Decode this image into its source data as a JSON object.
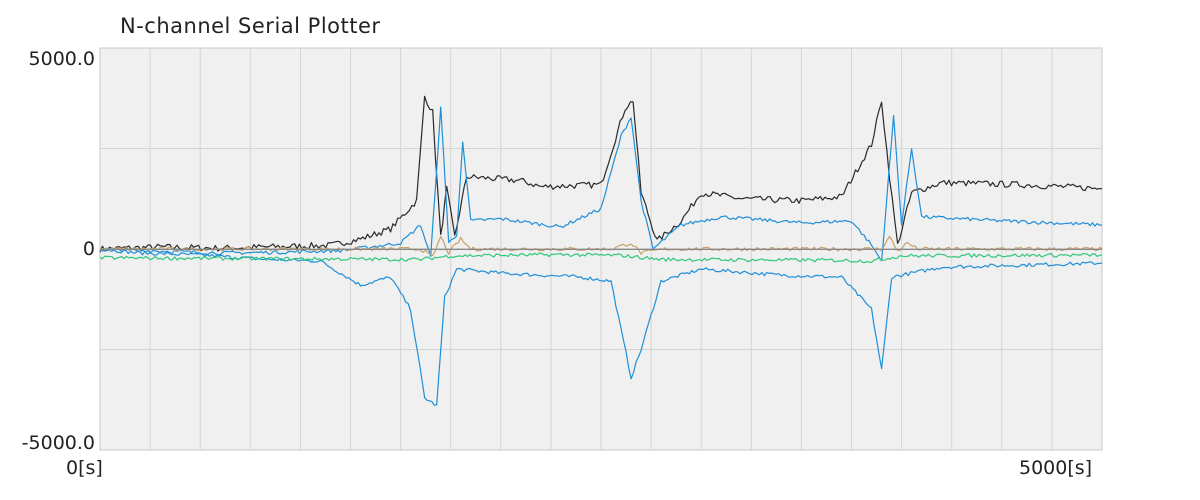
{
  "window": {
    "title": "N-channel Serial Plotter"
  },
  "chart_data": {
    "type": "line",
    "title": "N-channel Serial Plotter",
    "xlabel": "",
    "ylabel": "",
    "xlim": [
      0,
      5000
    ],
    "ylim": [
      -5000,
      5000
    ],
    "x_tick_labels": {
      "min": "0[s]",
      "max": "5000[s]"
    },
    "y_tick_labels": {
      "max": "5000.0",
      "zero": "0",
      "min": "-5000.0"
    },
    "grid": true,
    "legend": "none",
    "x_grid_step": 250,
    "y_grid_step": 2500,
    "series": [
      {
        "color": "#2a2a2a",
        "points": [
          [
            0,
            0
          ],
          [
            300,
            50
          ],
          [
            600,
            20
          ],
          [
            900,
            60
          ],
          [
            1150,
            90
          ],
          [
            1300,
            250
          ],
          [
            1450,
            500
          ],
          [
            1580,
            1200
          ],
          [
            1620,
            3800
          ],
          [
            1660,
            3400
          ],
          [
            1700,
            300
          ],
          [
            1730,
            1500
          ],
          [
            1770,
            300
          ],
          [
            1830,
            1800
          ],
          [
            2100,
            1700
          ],
          [
            2200,
            1550
          ],
          [
            2500,
            1600
          ],
          [
            2620,
            3500
          ],
          [
            2660,
            3700
          ],
          [
            2700,
            1400
          ],
          [
            2780,
            200
          ],
          [
            2900,
            700
          ],
          [
            3000,
            1400
          ],
          [
            3200,
            1250
          ],
          [
            3500,
            1200
          ],
          [
            3700,
            1300
          ],
          [
            3850,
            2600
          ],
          [
            3900,
            3700
          ],
          [
            3940,
            1800
          ],
          [
            3980,
            100
          ],
          [
            4050,
            1400
          ],
          [
            4200,
            1650
          ],
          [
            4600,
            1600
          ],
          [
            5000,
            1500
          ]
        ]
      },
      {
        "color": "#1e8fd8",
        "points": [
          [
            0,
            0
          ],
          [
            200,
            -100
          ],
          [
            500,
            -150
          ],
          [
            800,
            -250
          ],
          [
            1100,
            -300
          ],
          [
            1300,
            -900
          ],
          [
            1450,
            -700
          ],
          [
            1550,
            -1500
          ],
          [
            1620,
            -3700
          ],
          [
            1680,
            -3900
          ],
          [
            1720,
            -1200
          ],
          [
            1780,
            -500
          ],
          [
            2000,
            -600
          ],
          [
            2400,
            -700
          ],
          [
            2550,
            -800
          ],
          [
            2650,
            -3200
          ],
          [
            2700,
            -2500
          ],
          [
            2800,
            -800
          ],
          [
            3000,
            -500
          ],
          [
            3400,
            -650
          ],
          [
            3700,
            -700
          ],
          [
            3850,
            -1500
          ],
          [
            3900,
            -3000
          ],
          [
            3950,
            -700
          ],
          [
            4200,
            -450
          ],
          [
            4600,
            -400
          ],
          [
            5000,
            -350
          ]
        ]
      },
      {
        "color": "#1e8fd8",
        "points": [
          [
            0,
            0
          ],
          [
            300,
            -50
          ],
          [
            600,
            -100
          ],
          [
            900,
            -80
          ],
          [
            1200,
            -40
          ],
          [
            1350,
            50
          ],
          [
            1500,
            150
          ],
          [
            1600,
            600
          ],
          [
            1650,
            -200
          ],
          [
            1700,
            3500
          ],
          [
            1740,
            200
          ],
          [
            1780,
            300
          ],
          [
            1810,
            2700
          ],
          [
            1850,
            700
          ],
          [
            2000,
            750
          ],
          [
            2300,
            550
          ],
          [
            2500,
            1000
          ],
          [
            2600,
            2800
          ],
          [
            2650,
            3300
          ],
          [
            2700,
            1200
          ],
          [
            2760,
            0
          ],
          [
            2900,
            600
          ],
          [
            3100,
            800
          ],
          [
            3500,
            650
          ],
          [
            3750,
            700
          ],
          [
            3850,
            100
          ],
          [
            3900,
            -300
          ],
          [
            3960,
            3300
          ],
          [
            4000,
            600
          ],
          [
            4050,
            2500
          ],
          [
            4100,
            800
          ],
          [
            4500,
            700
          ],
          [
            5000,
            600
          ]
        ]
      },
      {
        "color": "#c8a26a",
        "points": [
          [
            0,
            0
          ],
          [
            1600,
            0
          ],
          [
            1660,
            -200
          ],
          [
            1700,
            300
          ],
          [
            1740,
            -100
          ],
          [
            1800,
            250
          ],
          [
            1850,
            0
          ],
          [
            2550,
            0
          ],
          [
            2650,
            150
          ],
          [
            2700,
            -100
          ],
          [
            2760,
            -50
          ],
          [
            2820,
            0
          ],
          [
            3900,
            0
          ],
          [
            3940,
            300
          ],
          [
            3980,
            -50
          ],
          [
            4030,
            150
          ],
          [
            4080,
            0
          ],
          [
            5000,
            0
          ]
        ]
      },
      {
        "color": "#888888",
        "points": [
          [
            0,
            -10
          ],
          [
            5000,
            -10
          ]
        ]
      },
      {
        "color": "#2ec87a",
        "points": [
          [
            0,
            -220
          ],
          [
            1600,
            -260
          ],
          [
            1750,
            -170
          ],
          [
            2300,
            -140
          ],
          [
            2600,
            -160
          ],
          [
            2800,
            -260
          ],
          [
            3700,
            -280
          ],
          [
            3850,
            -300
          ],
          [
            4000,
            -170
          ],
          [
            5000,
            -150
          ]
        ]
      }
    ]
  }
}
